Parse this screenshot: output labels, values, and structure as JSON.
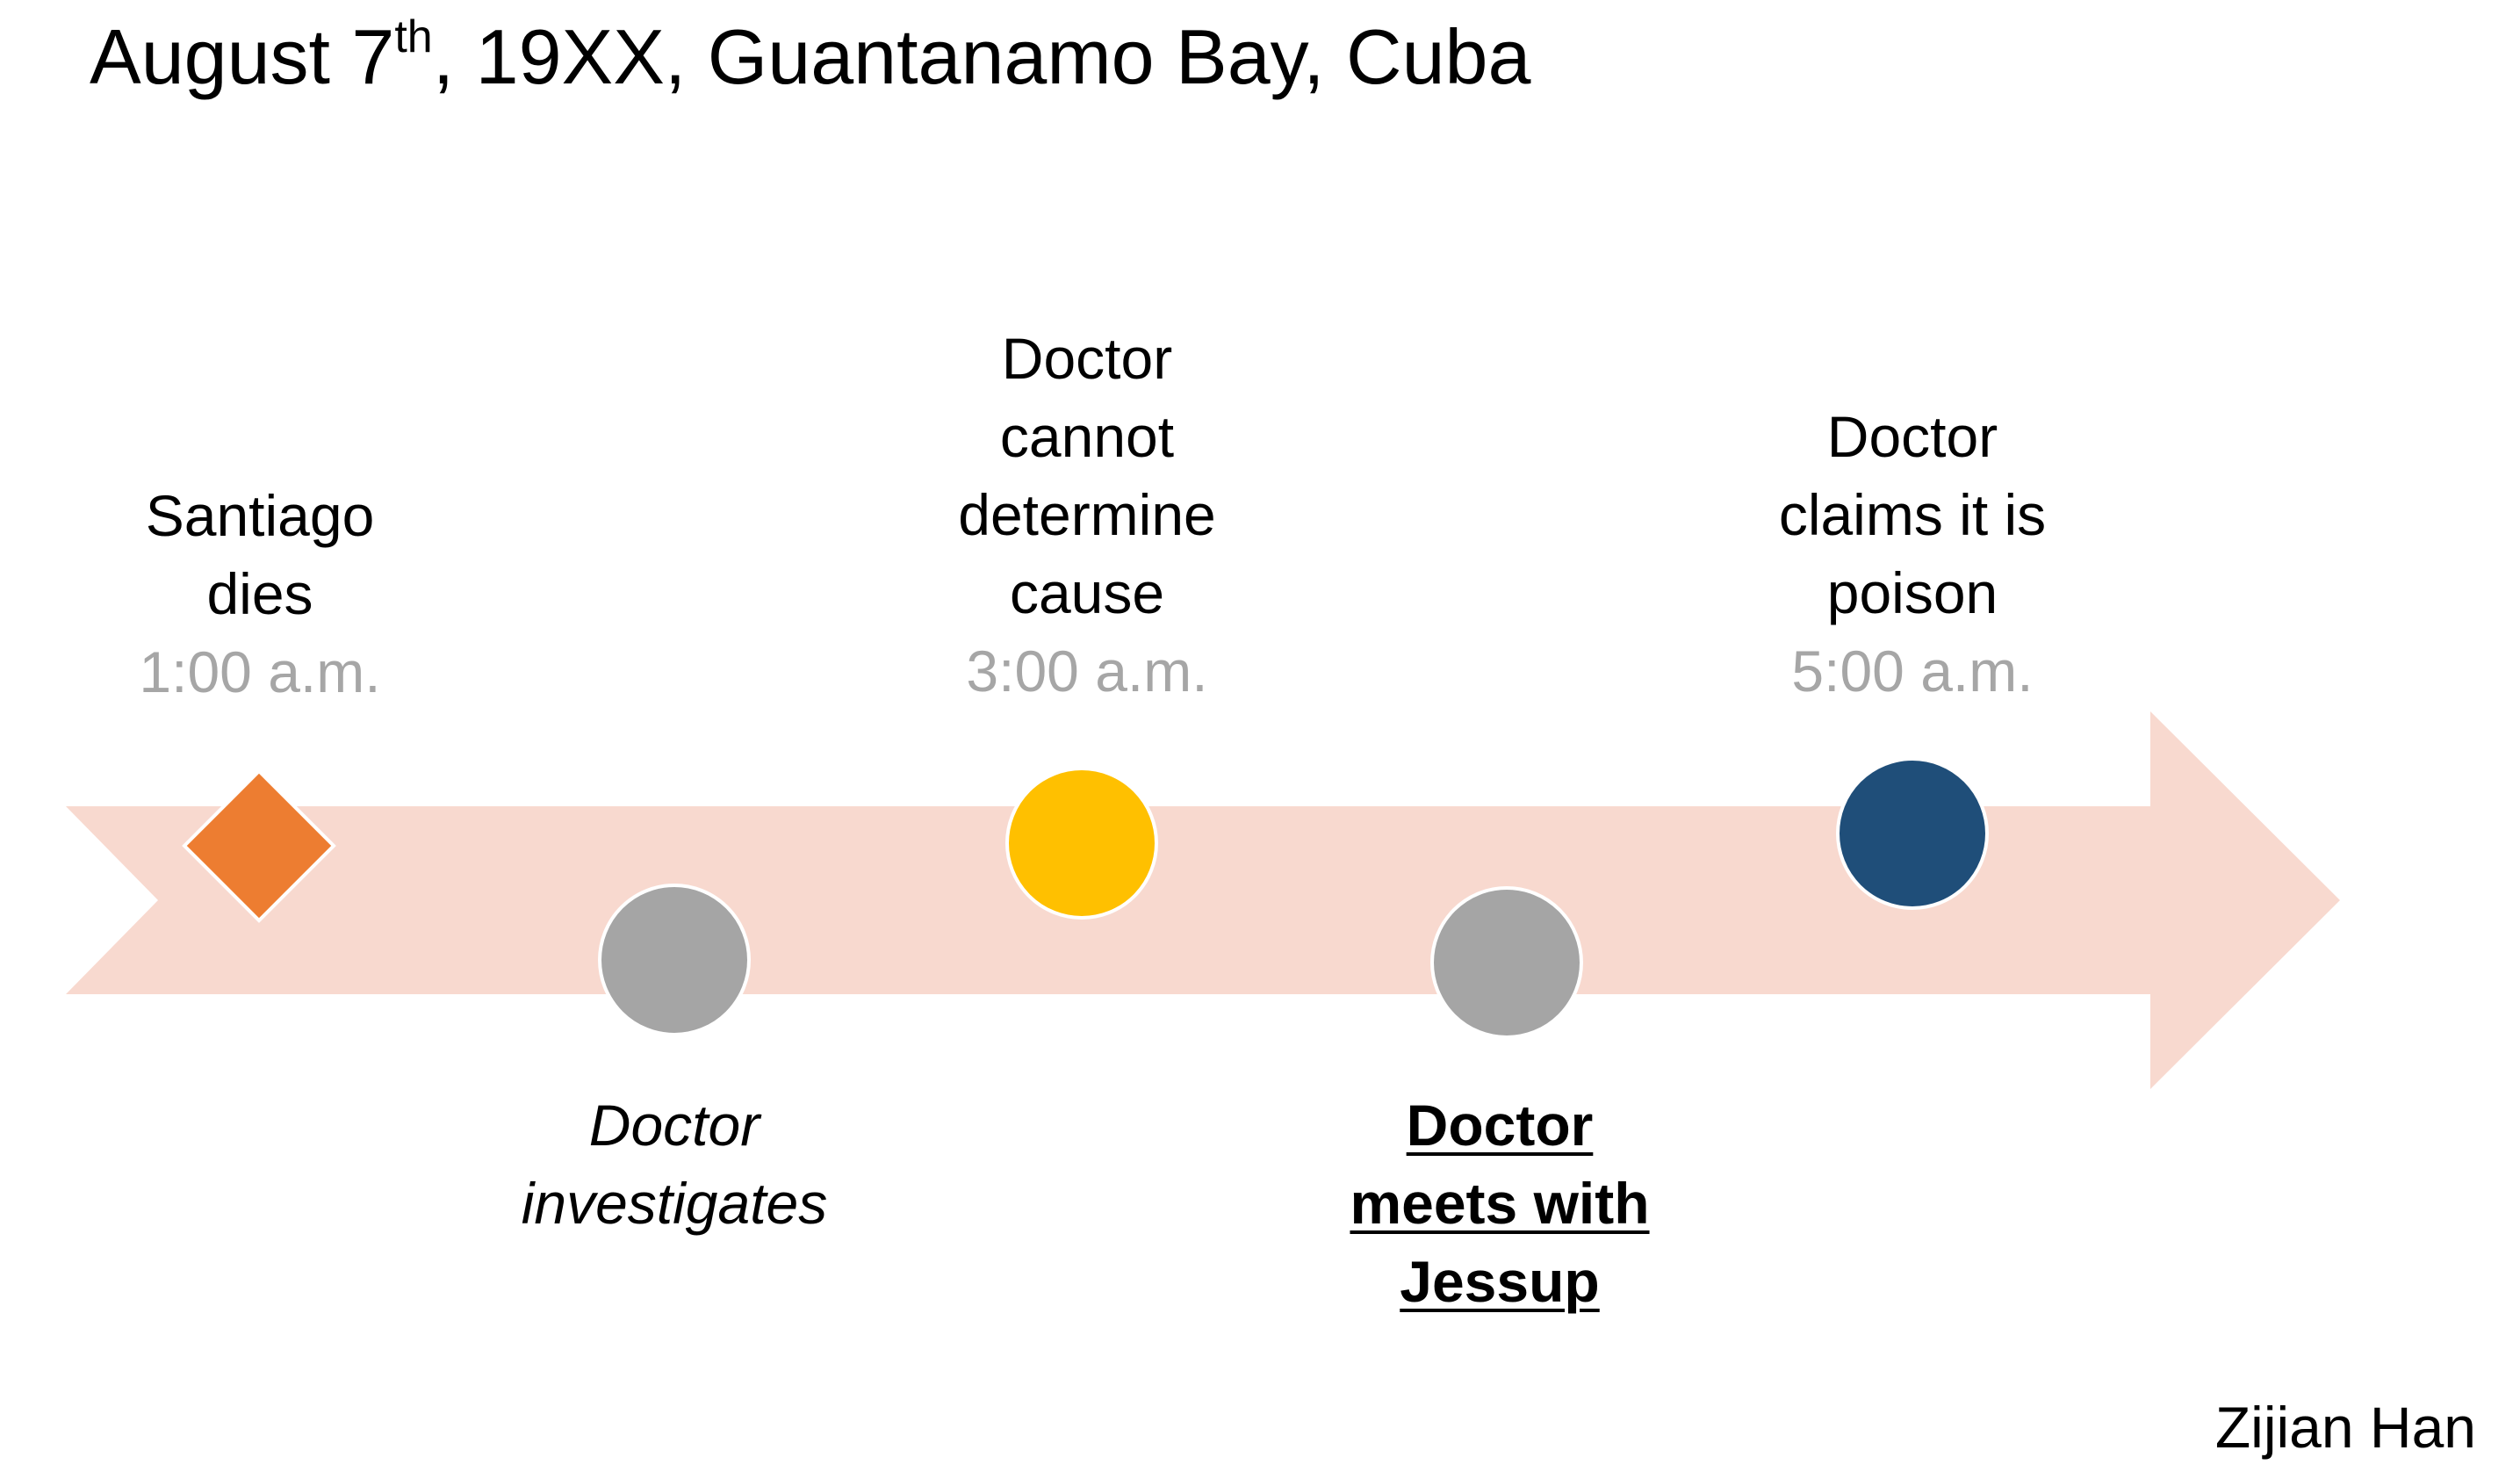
{
  "title": {
    "prefix": "August 7",
    "superscript": "th",
    "suffix": ", 19XX, Guantanamo Bay, Cuba"
  },
  "events": [
    {
      "lines": [
        "Santiago",
        "dies"
      ],
      "time": "1:00 a.m.",
      "marker": "diamond",
      "color": "#ed7d31",
      "position": "above"
    },
    {
      "lines": [
        "Doctor",
        "investigates"
      ],
      "time": "",
      "marker": "circle",
      "color": "#a5a5a5",
      "position": "below",
      "style": "italic"
    },
    {
      "lines": [
        "Doctor",
        "cannot",
        "determine",
        "cause"
      ],
      "time": "3:00 a.m.",
      "marker": "circle",
      "color": "#ffc000",
      "position": "above"
    },
    {
      "lines": [
        "Doctor",
        "meets with",
        "Jessup"
      ],
      "time": "",
      "marker": "circle",
      "color": "#a5a5a5",
      "position": "below",
      "style": "bold-underline"
    },
    {
      "lines": [
        "Doctor",
        "claims it is",
        "poison"
      ],
      "time": "5:00 a.m.",
      "marker": "circle",
      "color": "#1f4e79",
      "position": "above"
    }
  ],
  "arrow_color": "#f8d9cf",
  "author": "Zijian Han"
}
